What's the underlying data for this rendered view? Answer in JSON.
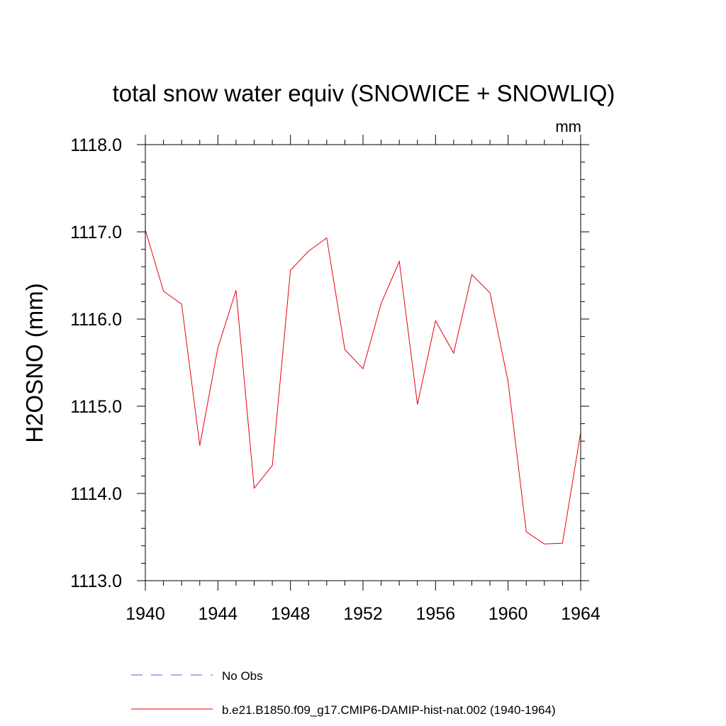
{
  "chart_data": {
    "type": "line",
    "title": "total snow water equiv (SNOWICE + SNOWLIQ)",
    "units": "mm",
    "ylabel": "H2OSNO  (mm)",
    "xlabel": "",
    "xlim": [
      1940,
      1964
    ],
    "ylim": [
      1113.0,
      1118.0
    ],
    "x_ticks": [
      1940,
      1944,
      1948,
      1952,
      1956,
      1960,
      1964
    ],
    "x_tick_labels": [
      "1940",
      "1944",
      "1948",
      "1952",
      "1956",
      "1960",
      "1964"
    ],
    "y_ticks": [
      1113.0,
      1114.0,
      1115.0,
      1116.0,
      1117.0,
      1118.0
    ],
    "y_tick_labels": [
      "1113.0",
      "1114.0",
      "1115.0",
      "1116.0",
      "1117.0",
      "1118.0"
    ],
    "grid": false,
    "legend_position": "bottom",
    "legend": [
      {
        "label": "No Obs",
        "color": "#6a5acd",
        "dash": "dashed"
      },
      {
        "label": "b.e21.B1850.f09_g17.CMIP6-DAMIP-hist-nat.002 (1940-1964)",
        "color": "#e8000b",
        "dash": "solid"
      }
    ],
    "series": [
      {
        "name": "b.e21.B1850.f09_g17.CMIP6-DAMIP-hist-nat.002 (1940-1964)",
        "color": "#e8000b",
        "x": [
          1940,
          1941,
          1942,
          1943,
          1944,
          1945,
          1946,
          1947,
          1948,
          1949,
          1950,
          1951,
          1952,
          1953,
          1954,
          1955,
          1956,
          1957,
          1958,
          1959,
          1960,
          1961,
          1962,
          1963,
          1964
        ],
        "y": [
          1117.02,
          1116.32,
          1116.17,
          1114.55,
          1115.67,
          1116.33,
          1114.06,
          1114.32,
          1116.56,
          1116.78,
          1116.93,
          1115.65,
          1115.43,
          1116.18,
          1116.66,
          1115.02,
          1115.98,
          1115.61,
          1116.51,
          1116.3,
          1115.28,
          1113.56,
          1113.42,
          1113.43,
          1114.7
        ]
      }
    ]
  }
}
